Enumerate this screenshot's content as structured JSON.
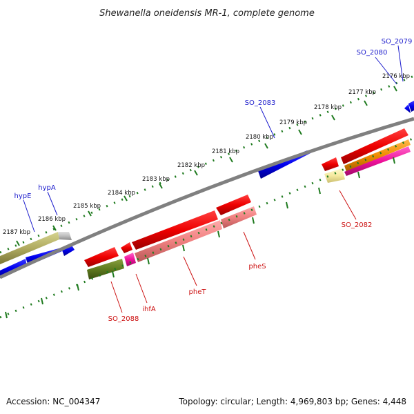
{
  "title": "Shewanella oneidensis MR-1, complete genome",
  "footer": {
    "accession": "Accession: NC_004347",
    "info": "Topology: circular; Length: 4,969,803 bp; Genes: 4,448"
  },
  "colors": {
    "label_forward": "#1a1acc",
    "label_reverse": "#cc1111",
    "tick": "#1e7a1e",
    "backbone": "#808080"
  },
  "scale_labels": [
    "2176 kbp",
    "2177 kbp",
    "2178 kbp",
    "2179 kbp",
    "2180 kbp",
    "2181 kbp",
    "2182 kbp",
    "2183 kbp",
    "2184 kbp",
    "2185 kbp",
    "2186 kbp",
    "2187 kbp"
  ],
  "gene_labels_forward": [
    "SO_2079",
    "SO_2080",
    "SO_2083",
    "hypA",
    "hypE"
  ],
  "gene_labels_reverse": [
    "SO_2082",
    "pheS",
    "pheT",
    "ihfA",
    "SO_2088"
  ]
}
